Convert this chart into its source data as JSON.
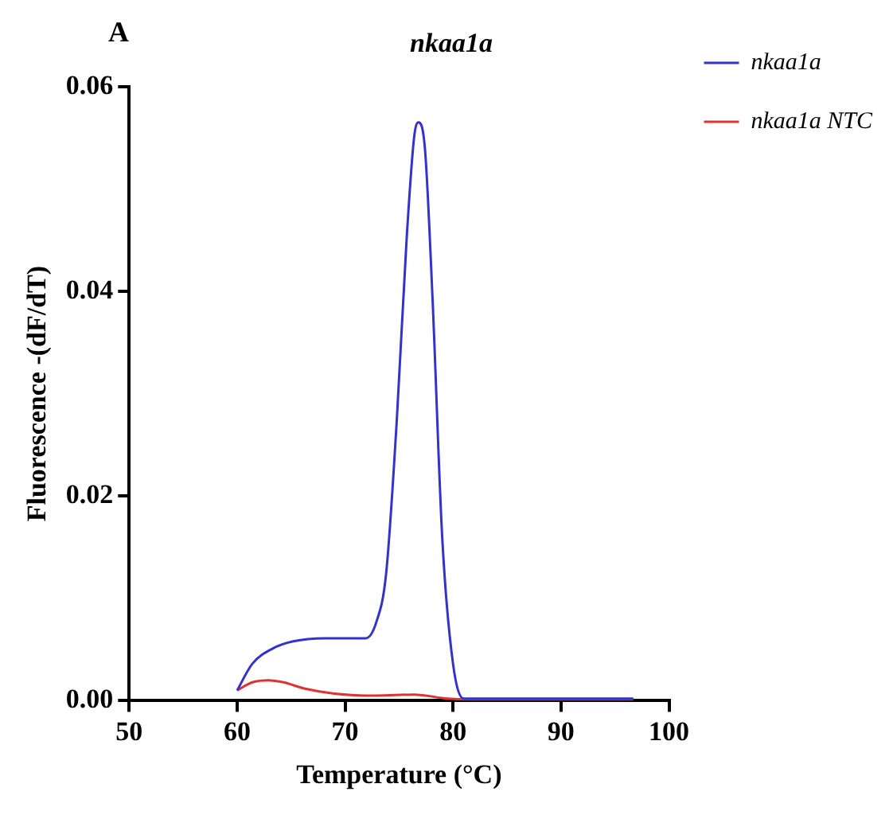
{
  "chart_data": {
    "type": "line",
    "title": "nkaa1a",
    "annotations": [
      "A"
    ],
    "xlabel": "Temperature (°C)",
    "ylabel": "Fluorescence -(dF/dT)",
    "xlim": [
      50,
      100
    ],
    "xticks": [
      50,
      60,
      70,
      80,
      90,
      100
    ],
    "ylim": [
      0,
      0.06
    ],
    "yticks": [
      {
        "value": 0,
        "label": "0.00"
      },
      {
        "value": 0.02,
        "label": "0.02"
      },
      {
        "value": 0.04,
        "label": "0.04"
      },
      {
        "value": 0.06,
        "label": "0.06"
      }
    ],
    "grid": false,
    "legend": "top right",
    "marker": "none",
    "line_style": "solid",
    "series": [
      {
        "name": "nkaa1a",
        "color": "#3333cc",
        "x": [
          60,
          61.4,
          63.3,
          65.2,
          68.1,
          71.9,
          72.9,
          73.8,
          74.8,
          75.7,
          76.4,
          76.8,
          77.4,
          78.1,
          79,
          80,
          81,
          96.7
        ],
        "values": [
          0.001,
          0.0036,
          0.0051,
          0.0058,
          0.0061,
          0.0061,
          0.0077,
          0.0124,
          0.0276,
          0.0451,
          0.0551,
          0.0565,
          0.0539,
          0.0393,
          0.0159,
          0.0036,
          0.0002,
          0.0002
        ]
      },
      {
        "name": "nkaa1a NTC",
        "color": "#dd3333",
        "x": [
          60,
          61.4,
          62.9,
          64.3,
          66.2,
          69,
          72.9,
          76.4,
          79.5,
          82.4,
          96.7
        ],
        "values": [
          0.001,
          0.0018,
          0.002,
          0.0018,
          0.0012,
          0.0007,
          0.0005,
          0.0006,
          0.0002,
          0.0001,
          0.0001
        ]
      }
    ]
  }
}
